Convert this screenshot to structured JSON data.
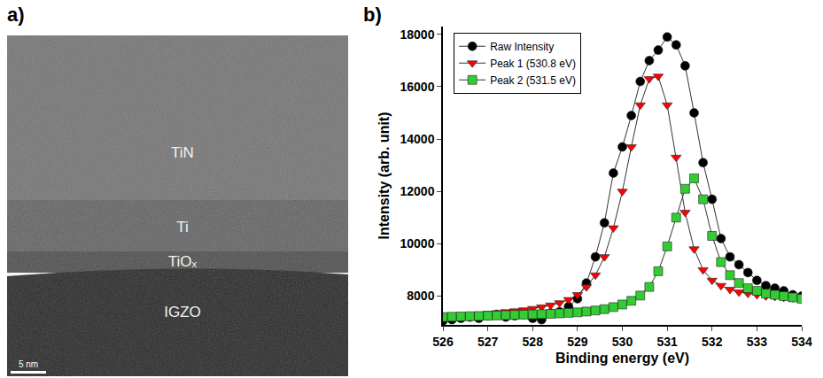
{
  "figure": {
    "panel_labels": [
      "a)",
      "b)"
    ]
  },
  "tem_image": {
    "layers": [
      "TiN",
      "Ti",
      "TiOₓ",
      "IGZO"
    ],
    "scale_bar": "5 nm"
  },
  "chart_data": {
    "type": "scatter",
    "xlabel": "Binding energy (eV)",
    "ylabel": "Intensity (arb. unit)",
    "x": [
      526,
      526.2,
      526.4,
      526.6,
      526.8,
      527,
      527.2,
      527.4,
      527.6,
      527.8,
      528,
      528.2,
      528.4,
      528.6,
      528.8,
      529,
      529.2,
      529.4,
      529.6,
      529.8,
      530,
      530.2,
      530.4,
      530.6,
      530.8,
      531,
      531.2,
      531.4,
      531.6,
      531.8,
      532,
      532.2,
      532.4,
      532.6,
      532.8,
      533,
      533.2,
      533.4,
      533.6,
      533.8,
      534
    ],
    "series": [
      {
        "name": "Raw Intensity",
        "color": "#000000",
        "marker": "circle",
        "line_style": "solid",
        "values": [
          7050,
          7100,
          7150,
          7200,
          7150,
          7250,
          7300,
          7200,
          7250,
          7300,
          7150,
          7100,
          7350,
          7400,
          7600,
          7900,
          8500,
          9500,
          10800,
          12700,
          13700,
          14900,
          16200,
          17000,
          17400,
          17900,
          17600,
          16800,
          15000,
          13100,
          11700,
          10200,
          9500,
          9200,
          8900,
          8600,
          8400,
          8300,
          8200,
          8050,
          8000
        ]
      },
      {
        "name": "Peak 1 (530.8 eV)",
        "color": "#ff0000",
        "marker": "triangle-down",
        "line_style": "solid",
        "values": [
          7200,
          7220,
          7250,
          7280,
          7300,
          7330,
          7360,
          7400,
          7430,
          7470,
          7520,
          7580,
          7650,
          7740,
          7860,
          8050,
          8350,
          8800,
          9500,
          10600,
          12000,
          13700,
          15300,
          16300,
          16400,
          15300,
          13300,
          11200,
          9800,
          9000,
          8600,
          8400,
          8250,
          8150,
          8100,
          8050,
          8000,
          7980,
          7950,
          7930,
          7900
        ]
      },
      {
        "name": "Peak 2 (531.5 eV)",
        "color": "#33cc33",
        "marker": "square",
        "line_style": "solid",
        "values": [
          7200,
          7210,
          7220,
          7230,
          7240,
          7250,
          7260,
          7270,
          7280,
          7290,
          7300,
          7310,
          7320,
          7340,
          7360,
          7380,
          7410,
          7450,
          7500,
          7580,
          7680,
          7820,
          8020,
          8350,
          8950,
          9900,
          11000,
          12100,
          12500,
          11700,
          10300,
          9300,
          8800,
          8500,
          8300,
          8200,
          8100,
          8050,
          8000,
          7950,
          7900
        ]
      }
    ],
    "xlim": [
      526,
      534
    ],
    "xticks": [
      526,
      527,
      528,
      529,
      530,
      531,
      532,
      533,
      534
    ],
    "ylim": [
      6900,
      18300
    ],
    "yticks": [
      8000,
      10000,
      12000,
      14000,
      16000,
      18000
    ],
    "grid": false,
    "legend": "upper left"
  }
}
